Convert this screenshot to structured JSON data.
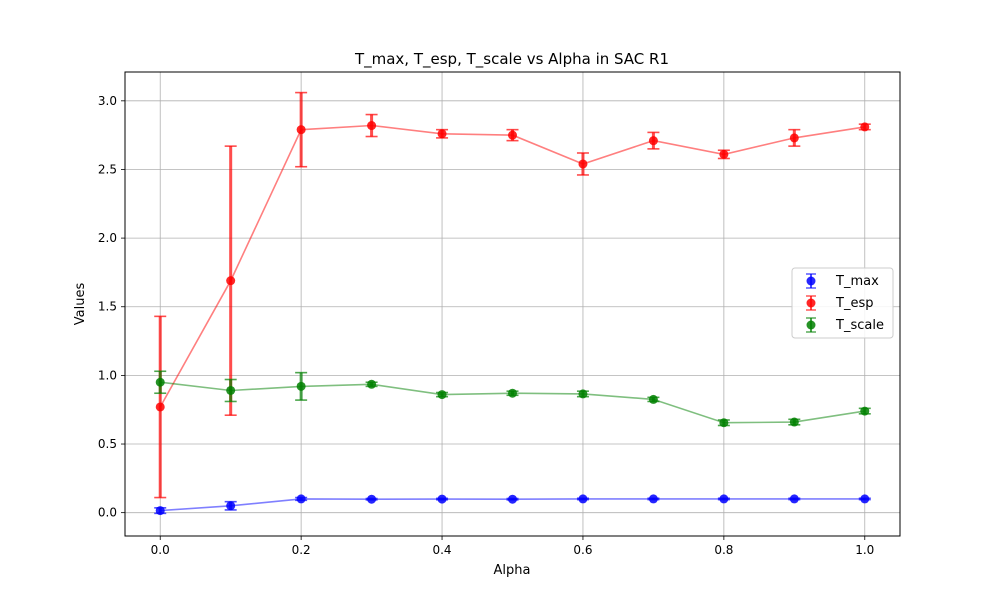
{
  "chart_data": {
    "type": "line",
    "title": "T_max, T_esp, T_scale vs Alpha in SAC R1",
    "xlabel": "Alpha",
    "ylabel": "Values",
    "x": [
      0.0,
      0.1,
      0.2,
      0.3,
      0.4,
      0.5,
      0.6,
      0.7,
      0.8,
      0.9,
      1.0
    ],
    "xlim": [
      -0.05,
      1.05
    ],
    "ylim": [
      -0.17,
      3.21
    ],
    "xticks": [
      0.0,
      0.2,
      0.4,
      0.6,
      0.8,
      1.0
    ],
    "xtick_labels": [
      "0.0",
      "0.2",
      "0.4",
      "0.6",
      "0.8",
      "1.0"
    ],
    "yticks": [
      0.0,
      0.5,
      1.0,
      1.5,
      2.0,
      2.5,
      3.0
    ],
    "ytick_labels": [
      "0.0",
      "0.5",
      "1.0",
      "1.5",
      "2.0",
      "2.5",
      "3.0"
    ],
    "grid": true,
    "legend_position": "center-right",
    "series": [
      {
        "name": "T_max",
        "color": "#0000ff",
        "values": [
          0.015,
          0.05,
          0.1,
          0.098,
          0.099,
          0.098,
          0.1,
          0.1,
          0.1,
          0.1,
          0.1
        ],
        "errors": [
          0.02,
          0.03,
          0.01,
          0.005,
          0.005,
          0.005,
          0.005,
          0.005,
          0.005,
          0.005,
          0.005
        ]
      },
      {
        "name": "T_esp",
        "color": "#ff0000",
        "values": [
          0.77,
          1.69,
          2.79,
          2.82,
          2.76,
          2.75,
          2.54,
          2.71,
          2.61,
          2.73,
          2.81
        ],
        "errors": [
          0.66,
          0.98,
          0.27,
          0.08,
          0.03,
          0.04,
          0.08,
          0.06,
          0.03,
          0.06,
          0.02
        ]
      },
      {
        "name": "T_scale",
        "color": "#008000",
        "values": [
          0.95,
          0.89,
          0.92,
          0.935,
          0.86,
          0.87,
          0.865,
          0.825,
          0.655,
          0.66,
          0.74
        ],
        "errors": [
          0.08,
          0.08,
          0.1,
          0.015,
          0.015,
          0.015,
          0.02,
          0.015,
          0.02,
          0.02,
          0.02
        ]
      }
    ]
  }
}
